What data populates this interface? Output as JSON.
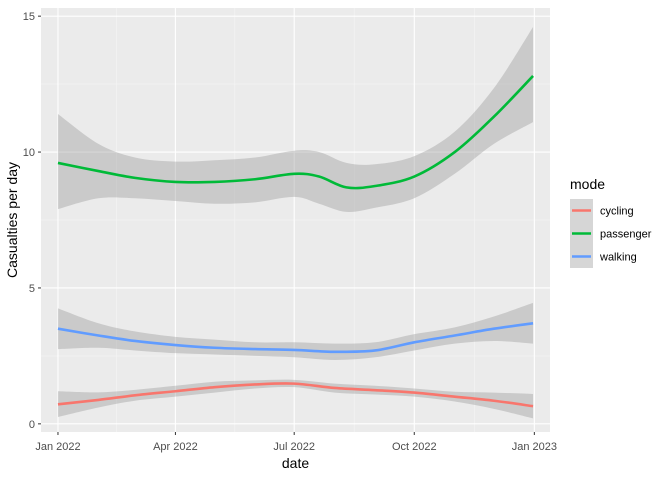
{
  "chart_data": {
    "type": "line",
    "xlabel": "date",
    "ylabel": "Casualties per day",
    "x_ticks": [
      "Jan 2022",
      "Apr 2022",
      "Jul 2022",
      "Oct 2022",
      "Jan 2023"
    ],
    "y_ticks": [
      "0",
      "5",
      "10",
      "15"
    ],
    "xlim": [
      "2021-12-19",
      "2023-01-13"
    ],
    "ylim": [
      -0.3,
      15.3
    ],
    "grid": true,
    "legend": {
      "title": "mode",
      "position": "right"
    },
    "series": [
      {
        "name": "cycling",
        "color": "#F8766D",
        "x": [
          "2022-01-01",
          "2022-02-01",
          "2022-03-01",
          "2022-04-01",
          "2022-05-01",
          "2022-06-01",
          "2022-07-01",
          "2022-08-01",
          "2022-09-01",
          "2022-10-01",
          "2022-11-01",
          "2022-12-01",
          "2022-12-31"
        ],
        "y": [
          0.72,
          0.88,
          1.05,
          1.2,
          1.35,
          1.45,
          1.48,
          1.32,
          1.24,
          1.15,
          1.0,
          0.85,
          0.65
        ],
        "lower": [
          0.25,
          0.6,
          0.85,
          1.0,
          1.15,
          1.3,
          1.35,
          1.15,
          1.08,
          1.0,
          0.82,
          0.55,
          0.2
        ],
        "upper": [
          1.2,
          1.16,
          1.25,
          1.4,
          1.55,
          1.6,
          1.62,
          1.48,
          1.4,
          1.3,
          1.18,
          1.15,
          1.1
        ]
      },
      {
        "name": "passenger",
        "color": "#00BA38",
        "x": [
          "2022-01-01",
          "2022-02-01",
          "2022-03-01",
          "2022-04-01",
          "2022-05-01",
          "2022-06-01",
          "2022-07-01",
          "2022-07-20",
          "2022-08-10",
          "2022-09-01",
          "2022-10-01",
          "2022-11-01",
          "2022-12-01",
          "2022-12-31"
        ],
        "y": [
          9.6,
          9.3,
          9.05,
          8.9,
          8.9,
          9.0,
          9.2,
          9.1,
          8.7,
          8.75,
          9.1,
          10.0,
          11.3,
          12.8
        ],
        "lower": [
          7.9,
          8.3,
          8.3,
          8.2,
          8.1,
          8.15,
          8.35,
          8.1,
          7.8,
          7.95,
          8.3,
          9.2,
          10.3,
          11.1
        ],
        "upper": [
          11.4,
          10.3,
          9.8,
          9.65,
          9.7,
          9.8,
          10.05,
          10.0,
          9.6,
          9.55,
          9.85,
          10.75,
          12.35,
          14.6
        ]
      },
      {
        "name": "walking",
        "color": "#619CFF",
        "x": [
          "2022-01-01",
          "2022-02-01",
          "2022-03-01",
          "2022-04-01",
          "2022-05-01",
          "2022-06-01",
          "2022-07-01",
          "2022-08-01",
          "2022-09-01",
          "2022-10-01",
          "2022-11-01",
          "2022-12-01",
          "2022-12-31"
        ],
        "y": [
          3.5,
          3.25,
          3.05,
          2.9,
          2.8,
          2.75,
          2.72,
          2.65,
          2.7,
          3.0,
          3.25,
          3.5,
          3.7
        ],
        "lower": [
          2.75,
          2.8,
          2.7,
          2.6,
          2.55,
          2.5,
          2.45,
          2.35,
          2.45,
          2.7,
          2.95,
          3.05,
          2.95
        ],
        "upper": [
          4.25,
          3.7,
          3.4,
          3.2,
          3.1,
          3.0,
          3.0,
          2.95,
          3.0,
          3.3,
          3.55,
          3.95,
          4.45
        ]
      }
    ]
  }
}
